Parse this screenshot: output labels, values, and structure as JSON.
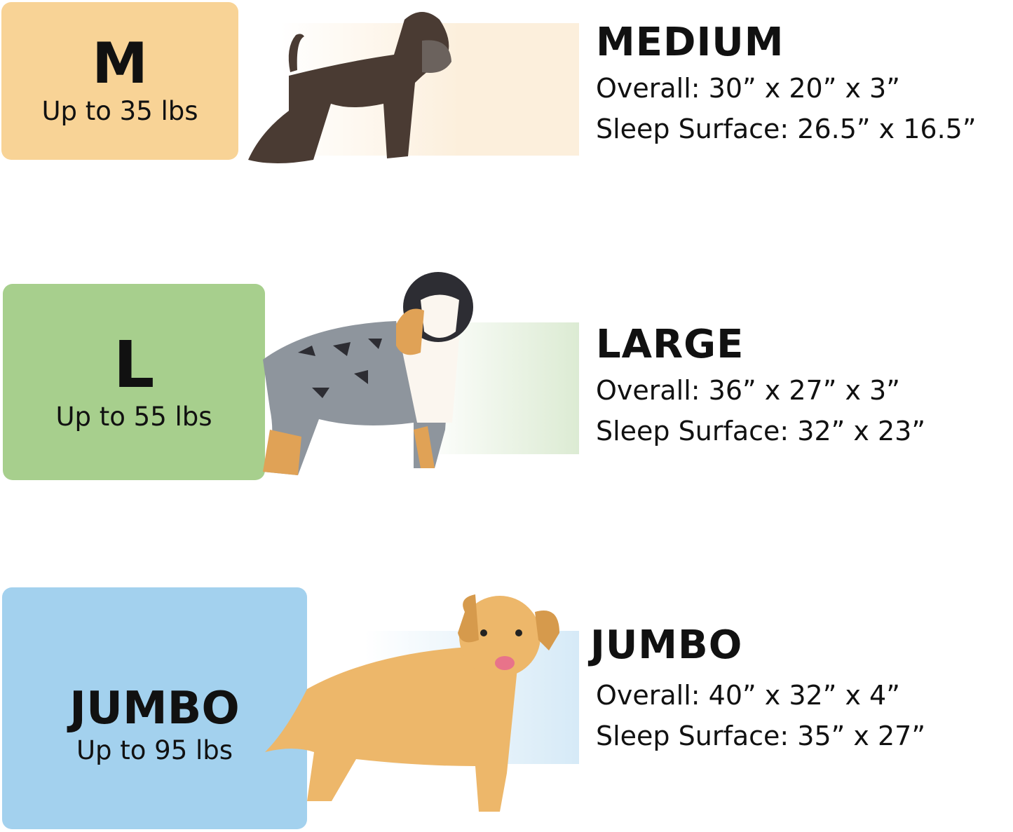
{
  "sizes": [
    {
      "letter": "M",
      "weight": "Up to 35 lbs",
      "name": "MEDIUM",
      "overall": "Overall: 30” x 20” x 3”",
      "sleep": "Sleep Surface: 26.5” x 16.5”",
      "color": "#f8d396",
      "band_color": "#fcefdc",
      "dog": "schnauzer-icon"
    },
    {
      "letter": "L",
      "weight": "Up to 55 lbs",
      "name": "LARGE",
      "overall": "Overall: 36” x 27” x 3”",
      "sleep": "Sleep Surface: 32” x 23”",
      "color": "#a7cf8d",
      "band_color": "#dcebd3",
      "dog": "australian-shepherd-icon"
    },
    {
      "letter": "JUMBO",
      "weight": "Up to 95 lbs",
      "name": "JUMBO",
      "overall": "Overall: 40” x 32” x 4”",
      "sleep": "Sleep Surface: 35” x 27”",
      "color": "#a3d1ee",
      "band_color": "#d6eaf7",
      "dog": "golden-retriever-icon"
    }
  ]
}
